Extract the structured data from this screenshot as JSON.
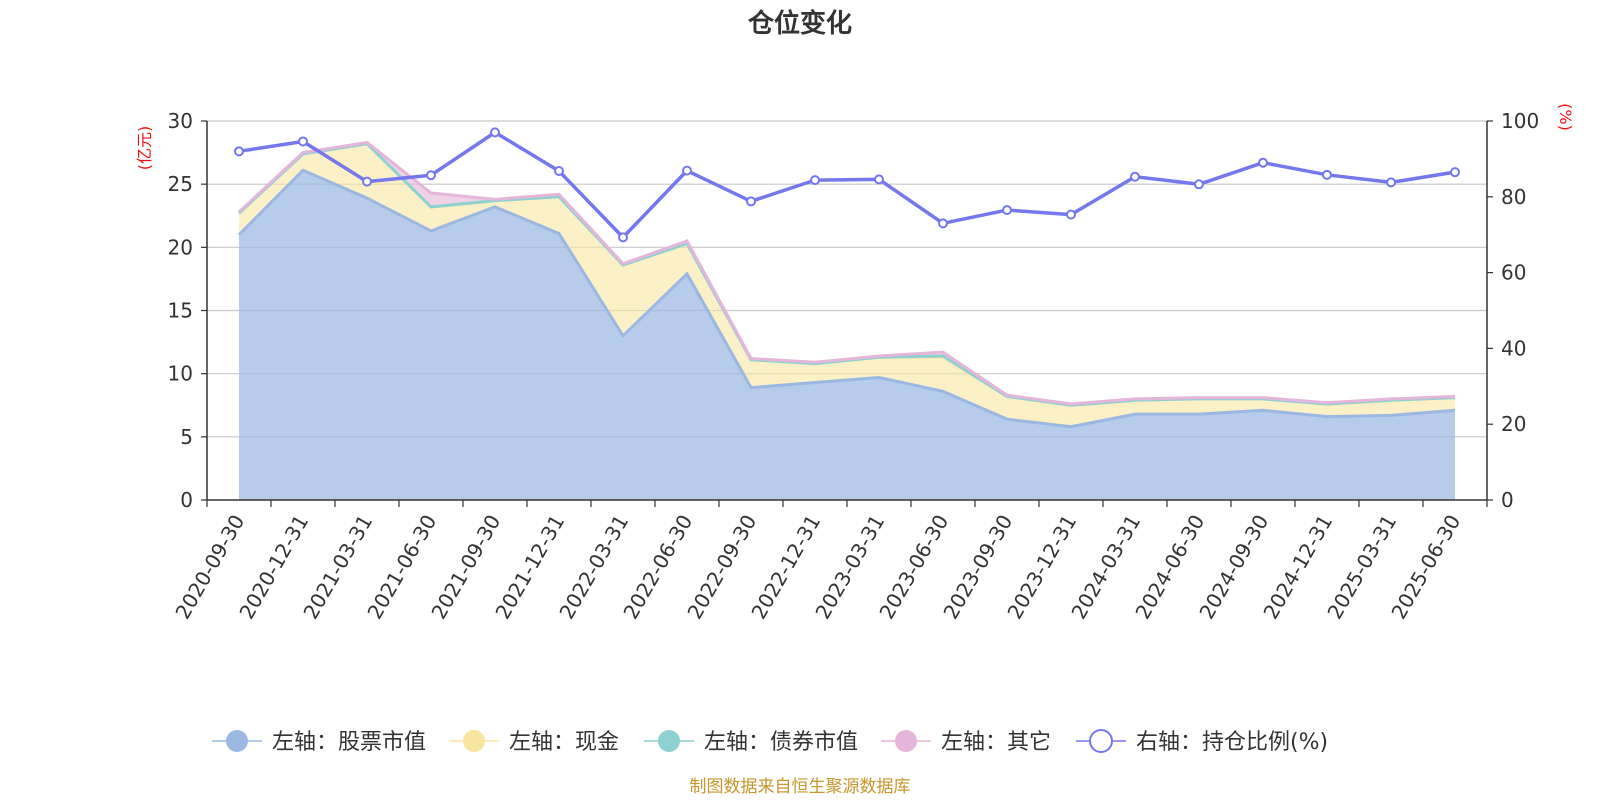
{
  "chart_data": {
    "type": "area",
    "title": "仓位变化",
    "x": [
      "2020-09-30",
      "2020-12-31",
      "2021-03-31",
      "2021-06-30",
      "2021-09-30",
      "2021-12-31",
      "2022-03-31",
      "2022-06-30",
      "2022-09-30",
      "2022-12-31",
      "2023-03-31",
      "2023-06-30",
      "2023-09-30",
      "2023-12-31",
      "2024-03-31",
      "2024-06-30",
      "2024-09-30",
      "2024-12-31",
      "2025-03-31",
      "2025-06-30"
    ],
    "left_axis": {
      "unit": "(亿元)",
      "ylim": [
        0,
        30
      ],
      "ticks": [
        0,
        5,
        10,
        15,
        20,
        25,
        30
      ]
    },
    "right_axis": {
      "unit": "(%)",
      "ylim": [
        0,
        100
      ],
      "ticks": [
        0,
        20,
        40,
        60,
        80,
        100
      ]
    },
    "series": [
      {
        "name": "左轴：股票市值",
        "axis": "left",
        "stack": true,
        "color": "#9bb8e2",
        "values": [
          21.0,
          26.1,
          23.9,
          21.3,
          23.2,
          21.1,
          13.0,
          17.9,
          8.9,
          9.3,
          9.7,
          8.6,
          6.4,
          5.8,
          6.8,
          6.8,
          7.1,
          6.6,
          6.7,
          7.1
        ]
      },
      {
        "name": "左轴：现金",
        "axis": "left",
        "stack": true,
        "color": "#f8e6a0",
        "values": [
          1.7,
          1.3,
          4.3,
          1.9,
          0.5,
          2.9,
          5.6,
          2.4,
          2.2,
          1.5,
          1.6,
          2.7,
          1.8,
          1.7,
          1.1,
          1.2,
          0.9,
          1.0,
          1.2,
          1.0
        ]
      },
      {
        "name": "左轴：债券市值",
        "axis": "left",
        "stack": true,
        "color": "#8ed1d3",
        "values": [
          0,
          0,
          0,
          0,
          0,
          0,
          0,
          0,
          0,
          0,
          0,
          0.1,
          0,
          0,
          0,
          0,
          0,
          0,
          0,
          0
        ]
      },
      {
        "name": "左轴：其它",
        "axis": "left",
        "stack": true,
        "color": "#e5b5da",
        "values": [
          0.1,
          0.1,
          0.1,
          1.1,
          0.1,
          0.2,
          0.1,
          0.2,
          0.1,
          0.1,
          0.1,
          0.3,
          0.1,
          0.1,
          0.1,
          0.1,
          0.1,
          0.1,
          0.1,
          0.1
        ]
      },
      {
        "name": "右轴：持仓比例(%)",
        "axis": "right",
        "type": "line",
        "color": "#7477ee",
        "values": [
          92.0,
          94.6,
          84.0,
          85.7,
          97.0,
          86.8,
          69.3,
          86.9,
          78.8,
          84.4,
          84.6,
          73.0,
          76.5,
          75.3,
          85.3,
          83.3,
          89.0,
          85.8,
          83.8,
          86.5
        ]
      }
    ],
    "grid": true,
    "legend": "bottom-center",
    "source": "制图数据来自恒生聚源数据库"
  }
}
